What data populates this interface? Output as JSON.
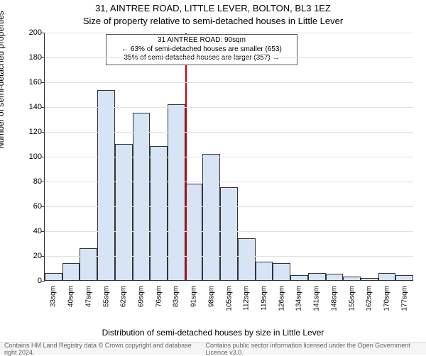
{
  "title_main": "31, AINTREE ROAD, LITTLE LEVER, BOLTON, BL3 1EZ",
  "title_sub": "Size of property relative to semi-detached houses in Little Lever",
  "ylabel": "Number of semi-detached properties",
  "xlabel_bottom": "Distribution of semi-detached houses by size in Little Lever",
  "chart": {
    "type": "histogram",
    "ylim": [
      0,
      200
    ],
    "ytick_step": 20,
    "background_color": "#ffffff",
    "grid_color": "#e0e0e0",
    "axis_color": "#333333",
    "bar_fill": "#d6e4f5",
    "bar_border": "#333333",
    "vline_color": "#cc0000",
    "vline_x_category_index": 8,
    "categories": [
      "33sqm",
      "40sqm",
      "47sqm",
      "55sqm",
      "62sqm",
      "69sqm",
      "76sqm",
      "83sqm",
      "91sqm",
      "98sqm",
      "105sqm",
      "112sqm",
      "119sqm",
      "126sqm",
      "134sqm",
      "141sqm",
      "148sqm",
      "155sqm",
      "162sqm",
      "170sqm",
      "177sqm"
    ],
    "values": [
      6,
      14,
      26,
      153,
      110,
      135,
      108,
      142,
      78,
      102,
      75,
      34,
      15,
      14,
      4,
      6,
      5,
      3,
      2,
      6,
      4
    ]
  },
  "annotation": {
    "line1": "31 AINTREE ROAD: 90sqm",
    "line2": "← 63% of semi-detached houses are smaller (653)",
    "line3": "35% of semi-detached houses are larger (357) →"
  },
  "footer": {
    "left": "Contains HM Land Registry data © Crown copyright and database right 2024.",
    "right": "Contains public sector information licensed under the Open Government Licence v3.0."
  },
  "fonts": {
    "title_fontsize": 13,
    "label_fontsize": 12,
    "tick_fontsize": 11,
    "annot_fontsize": 10,
    "footer_fontsize": 9
  }
}
